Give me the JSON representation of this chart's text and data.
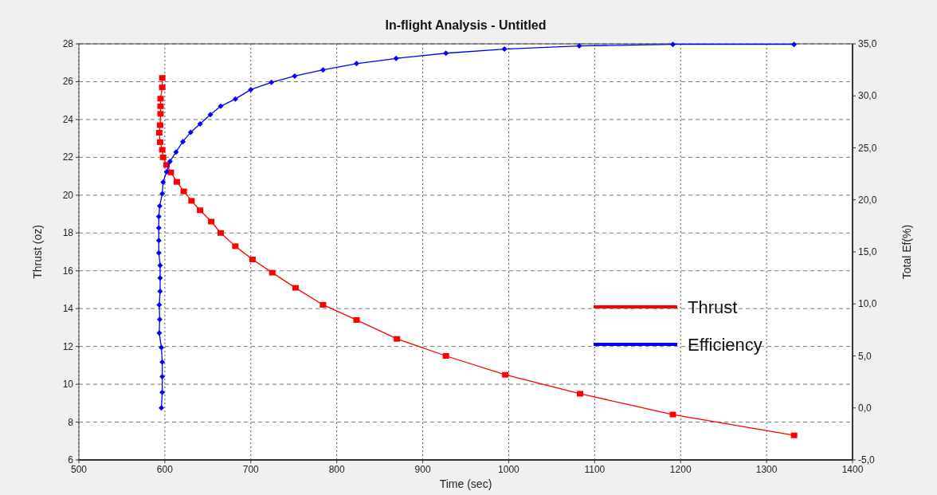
{
  "chart_data": {
    "type": "line",
    "title": "In-flight Analysis - Untitled",
    "xlabel": "Time (sec)",
    "ylabel": "Thrust (oz)",
    "y2label": "Total Ef(%)",
    "xlim": [
      500,
      1400
    ],
    "xticks": [
      500,
      600,
      700,
      800,
      900,
      1000,
      1100,
      1200,
      1300,
      1400
    ],
    "ylim": [
      6,
      28
    ],
    "yticks": [
      6,
      8,
      10,
      12,
      14,
      16,
      18,
      20,
      22,
      24,
      26,
      28
    ],
    "y2lim": [
      -5,
      35
    ],
    "y2ticks": [
      {
        "value": -5,
        "label": "-5,0"
      },
      {
        "value": 0,
        "label": "0,0"
      },
      {
        "value": 5,
        "label": "5,0"
      },
      {
        "value": 10,
        "label": "10,0"
      },
      {
        "value": 15,
        "label": "15,0"
      },
      {
        "value": 20,
        "label": "20,0"
      },
      {
        "value": 25,
        "label": "25,0"
      },
      {
        "value": 30,
        "label": "30,0"
      },
      {
        "value": 35,
        "label": "35,0"
      }
    ],
    "grid": true,
    "legend": "right",
    "line_style": "solid",
    "series": [
      {
        "name": "Thrust",
        "color": "#ff0000",
        "marker": "square",
        "x": [
          597,
          597,
          595,
          595,
          595,
          594.5,
          593.5,
          594.5,
          597,
          598,
          602,
          607,
          614,
          622,
          631,
          641,
          654,
          665,
          682,
          702,
          725,
          752,
          784,
          823,
          870,
          927,
          996,
          1083,
          1191,
          1332
        ],
        "values": [
          26.2,
          25.7,
          25.1,
          24.7,
          24.3,
          23.7,
          23.3,
          22.8,
          22.4,
          22,
          21.6,
          21.2,
          20.7,
          20.2,
          19.7,
          19.2,
          18.6,
          18,
          17.3,
          16.6,
          15.9,
          15.1,
          14.2,
          13.4,
          12.4,
          11.5,
          10.5,
          9.5,
          8.4,
          7.3
        ]
      },
      {
        "name": "Efficiency",
        "color": "#0000ff",
        "marker": "diamond",
        "axis": "y2",
        "x": [
          596,
          597,
          597,
          597,
          596,
          593.5,
          594,
          593.5,
          594.5,
          594.5,
          594.5,
          593,
          593,
          593,
          593,
          594,
          597,
          598,
          602,
          606,
          613,
          621,
          630,
          641,
          653,
          665,
          682,
          700,
          724,
          751,
          784,
          823,
          869,
          927,
          995,
          1082,
          1191,
          1332
        ],
        "values": [
          0,
          1.5,
          3,
          4.4,
          5.8,
          7.2,
          8.5,
          9.9,
          11.2,
          12.5,
          13.7,
          14.9,
          16.1,
          17.3,
          18.4,
          19.4,
          20.6,
          21.7,
          22.7,
          23.7,
          24.6,
          25.6,
          26.5,
          27.3,
          28.2,
          29,
          29.7,
          30.6,
          31.3,
          31.9,
          32.5,
          33.1,
          33.6,
          34.1,
          34.5,
          34.8,
          34.95,
          34.95
        ]
      }
    ]
  }
}
